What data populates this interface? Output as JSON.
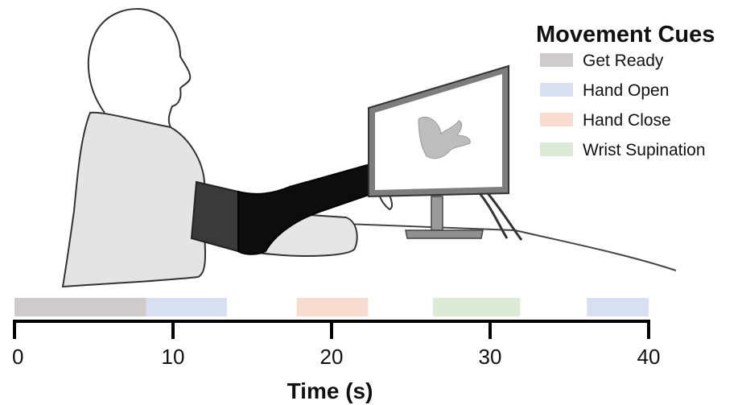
{
  "legend": {
    "title": "Movement Cues",
    "items": [
      {
        "id": "get-ready",
        "label": "Get Ready",
        "color": "#cfcbcd"
      },
      {
        "id": "hand-open",
        "label": "Hand Open",
        "color": "#d7dff0"
      },
      {
        "id": "hand-close",
        "label": "Hand Close",
        "color": "#f7dccf"
      },
      {
        "id": "wrist-supination",
        "label": "Wrist Supination",
        "color": "#dcebd6"
      }
    ]
  },
  "timeline": {
    "axis_title": "Time (s)",
    "x_min": 0,
    "x_max": 40,
    "ticks": [
      0,
      10,
      20,
      30,
      40
    ],
    "tick_labels": [
      "0",
      "10",
      "20",
      "30",
      "40"
    ],
    "segments": [
      {
        "cue": "get-ready",
        "start": 0,
        "end": 8.3
      },
      {
        "cue": "hand-open",
        "start": 8.3,
        "end": 13.4
      },
      {
        "cue": "hand-close",
        "start": 17.8,
        "end": 22.3
      },
      {
        "cue": "wrist-supination",
        "start": 26.4,
        "end": 31.9
      },
      {
        "cue": "hand-open",
        "start": 36.1,
        "end": 40
      }
    ]
  },
  "illustration": {
    "subject": "seated-person-with-sleeve",
    "display": "monitor-showing-hand"
  }
}
